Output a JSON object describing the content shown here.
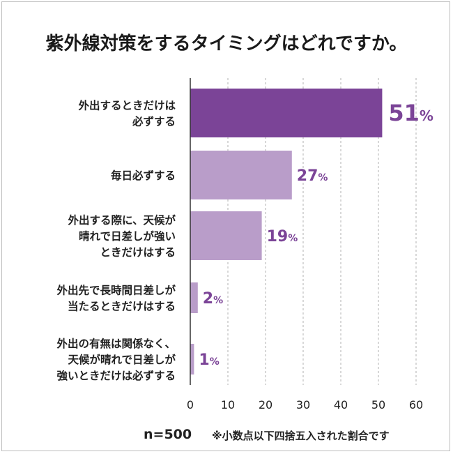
{
  "title": "紫外線対策をするタイミングはどれですか。",
  "footer": {
    "n": "n=500",
    "note": "※小数点以下四捨五入された割合です"
  },
  "colors": {
    "highlight": "#7b4497",
    "bar": "#b99dc9",
    "value_text": "#7b4497",
    "grid": "#b0b0b0",
    "axis": "#333333"
  },
  "chart_data": {
    "type": "bar",
    "orientation": "horizontal",
    "title": "紫外線対策をするタイミングはどれですか。",
    "categories": [
      [
        "外出するときだけは",
        "必ずする"
      ],
      [
        "毎日必ずする"
      ],
      [
        "外出する際に、天候が",
        "晴れで日差しが強い",
        "ときだけはする"
      ],
      [
        "外出先で長時間日差しが",
        "当たるときだけはする"
      ],
      [
        "外出の有無は関係なく、",
        "天候が晴れで日差しが",
        "強いときだけは必ずする"
      ]
    ],
    "values": [
      51,
      27,
      19,
      2,
      1
    ],
    "value_unit": "%",
    "xlim": [
      0,
      60
    ],
    "xticks": [
      0,
      10,
      20,
      30,
      40,
      50,
      60
    ],
    "grid": "vertical-dashed",
    "highlight_index": 0
  }
}
